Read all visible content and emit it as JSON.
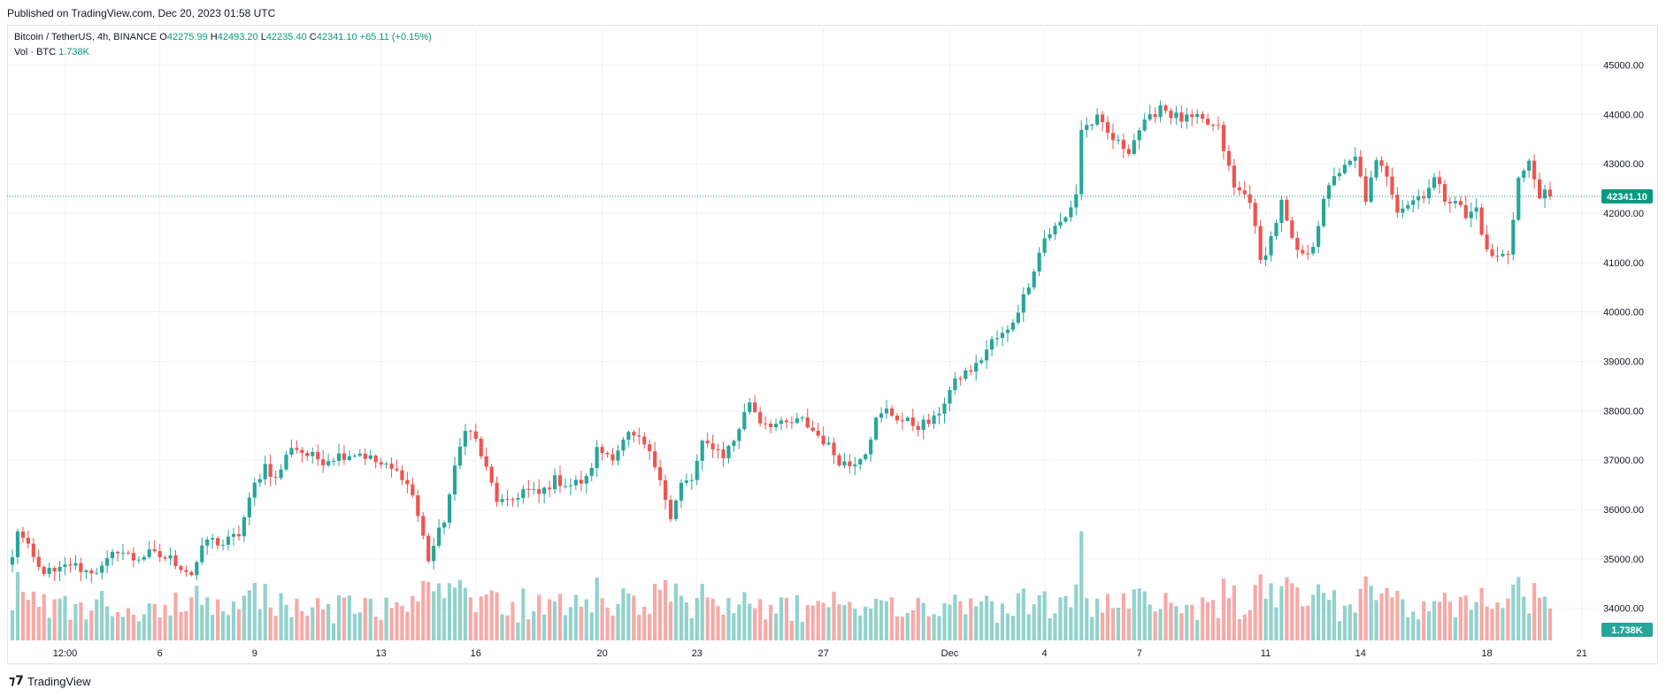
{
  "header": {
    "published": "Published on TradingView.com, Dec 20, 2023 01:58 UTC"
  },
  "legend": {
    "symbol": "Bitcoin / TetherUS, 4h, BINANCE",
    "o_label": "O",
    "o": "42275.99",
    "h_label": "H",
    "h": "42493.20",
    "l_label": "L",
    "l": "42235.40",
    "c_label": "C",
    "c": "42341.10",
    "change": "+65.11 (+0.15%)",
    "vol_label": "Vol · BTC",
    "vol": "1.738K"
  },
  "footer": {
    "brand": "TradingView",
    "logo_icon": "tradingview-logo-icon"
  },
  "colors": {
    "up": "#26a69a",
    "down": "#ef5350",
    "up_vol": "#92d2cc",
    "down_vol": "#f7a9a7",
    "last": "#089981",
    "grid": "#f0f3fa"
  },
  "chart_data": {
    "type": "candlestick",
    "symbol": "Bitcoin / TetherUS",
    "interval": "4h",
    "exchange": "BINANCE",
    "ylim": [
      33350,
      45600
    ],
    "y_ticks": [
      34000,
      35000,
      36000,
      37000,
      38000,
      39000,
      40000,
      41000,
      42000,
      43000,
      44000,
      45000
    ],
    "y_tick_labels": [
      "34000.00",
      "35000.00",
      "36000.00",
      "37000.00",
      "38000.00",
      "39000.00",
      "40000.00",
      "41000.00",
      "42000.00",
      "43000.00",
      "44000.00",
      "45000.00"
    ],
    "x_ticks": [
      {
        "label": "12:00",
        "bar": 10
      },
      {
        "label": "6",
        "bar": 28
      },
      {
        "label": "9",
        "bar": 46
      },
      {
        "label": "13",
        "bar": 70
      },
      {
        "label": "16",
        "bar": 88
      },
      {
        "label": "20",
        "bar": 112
      },
      {
        "label": "23",
        "bar": 130
      },
      {
        "label": "27",
        "bar": 154
      },
      {
        "label": "Dec",
        "bar": 178
      },
      {
        "label": "4",
        "bar": 196
      },
      {
        "label": "7",
        "bar": 214
      },
      {
        "label": "11",
        "bar": 238
      },
      {
        "label": "14",
        "bar": 256
      },
      {
        "label": "18",
        "bar": 280
      },
      {
        "label": "21",
        "bar": 298
      }
    ],
    "last_price": 42341.1,
    "last_price_label": "42341.10",
    "last_volume_label": "1.738K",
    "anchors": [
      [
        0,
        35000
      ],
      [
        1,
        35600
      ],
      [
        3,
        35200
      ],
      [
        5,
        34800
      ],
      [
        8,
        34700
      ],
      [
        11,
        34900
      ],
      [
        14,
        34750
      ],
      [
        17,
        34800
      ],
      [
        20,
        35200
      ],
      [
        23,
        35000
      ],
      [
        26,
        35100
      ],
      [
        30,
        35000
      ],
      [
        34,
        34700
      ],
      [
        37,
        35400
      ],
      [
        40,
        35300
      ],
      [
        43,
        35500
      ],
      [
        46,
        36500
      ],
      [
        48,
        36900
      ],
      [
        50,
        36600
      ],
      [
        53,
        37300
      ],
      [
        56,
        37100
      ],
      [
        59,
        37000
      ],
      [
        62,
        37100
      ],
      [
        66,
        37150
      ],
      [
        70,
        36900
      ],
      [
        74,
        36700
      ],
      [
        76,
        36300
      ],
      [
        79,
        35000
      ],
      [
        82,
        35800
      ],
      [
        84,
        36800
      ],
      [
        86,
        37700
      ],
      [
        88,
        37400
      ],
      [
        90,
        36800
      ],
      [
        92,
        36200
      ],
      [
        94,
        36100
      ],
      [
        97,
        36400
      ],
      [
        100,
        36300
      ],
      [
        103,
        36600
      ],
      [
        106,
        36500
      ],
      [
        109,
        36600
      ],
      [
        111,
        37200
      ],
      [
        114,
        37100
      ],
      [
        117,
        37500
      ],
      [
        120,
        37300
      ],
      [
        123,
        36700
      ],
      [
        125,
        35800
      ],
      [
        127,
        36500
      ],
      [
        129,
        36600
      ],
      [
        131,
        37300
      ],
      [
        133,
        37300
      ],
      [
        135,
        37100
      ],
      [
        137,
        37400
      ],
      [
        140,
        38200
      ],
      [
        142,
        37800
      ],
      [
        146,
        37700
      ],
      [
        150,
        37800
      ],
      [
        154,
        37400
      ],
      [
        157,
        37000
      ],
      [
        159,
        36900
      ],
      [
        162,
        37200
      ],
      [
        164,
        37800
      ],
      [
        166,
        38000
      ],
      [
        169,
        37800
      ],
      [
        172,
        37700
      ],
      [
        175,
        37800
      ],
      [
        178,
        38400
      ],
      [
        180,
        38700
      ],
      [
        183,
        38900
      ],
      [
        186,
        39400
      ],
      [
        189,
        39600
      ],
      [
        192,
        40300
      ],
      [
        194,
        40900
      ],
      [
        196,
        41500
      ],
      [
        198,
        41700
      ],
      [
        200,
        41900
      ],
      [
        202,
        42400
      ],
      [
        203,
        43700
      ],
      [
        206,
        43900
      ],
      [
        208,
        43600
      ],
      [
        210,
        43400
      ],
      [
        212,
        43300
      ],
      [
        214,
        43700
      ],
      [
        216,
        43900
      ],
      [
        218,
        44200
      ],
      [
        220,
        44000
      ],
      [
        222,
        43900
      ],
      [
        225,
        43900
      ],
      [
        229,
        43700
      ],
      [
        232,
        42500
      ],
      [
        235,
        42300
      ],
      [
        237,
        41000
      ],
      [
        239,
        41500
      ],
      [
        241,
        42200
      ],
      [
        243,
        41400
      ],
      [
        245,
        41100
      ],
      [
        247,
        41400
      ],
      [
        249,
        42200
      ],
      [
        251,
        42800
      ],
      [
        253,
        42900
      ],
      [
        255,
        43100
      ],
      [
        257,
        42300
      ],
      [
        259,
        43000
      ],
      [
        261,
        42800
      ],
      [
        263,
        42100
      ],
      [
        265,
        42200
      ],
      [
        268,
        42400
      ],
      [
        270,
        42700
      ],
      [
        272,
        42300
      ],
      [
        274,
        42300
      ],
      [
        276,
        41900
      ],
      [
        278,
        42100
      ],
      [
        280,
        41200
      ],
      [
        282,
        41100
      ],
      [
        284,
        41200
      ],
      [
        286,
        42700
      ],
      [
        288,
        43000
      ],
      [
        290,
        42400
      ],
      [
        292,
        42341.1
      ]
    ],
    "bar_count": 293
  }
}
